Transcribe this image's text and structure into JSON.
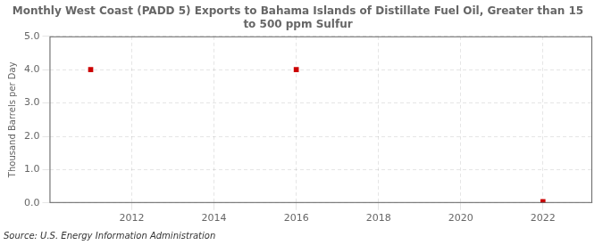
{
  "chart_data": {
    "type": "scatter",
    "title": "Monthly West Coast (PADD 5) Exports to Bahama Islands of Distillate Fuel Oil, Greater than 15\nto 500 ppm Sulfur",
    "ylabel": "Thousand Barrels per Day",
    "annotations": [
      "Source: U.S. Energy Information Administration"
    ],
    "x": [
      2011.0,
      2016.0,
      2022.0
    ],
    "values": [
      4.0,
      4.0,
      0.04
    ],
    "color": "#cc0000",
    "marker": "square",
    "xlim": [
      2010.0,
      2023.2
    ],
    "ylim": [
      0.0,
      5.0
    ],
    "xticks": [
      2012,
      2014,
      2016,
      2018,
      2020,
      2022
    ],
    "yticks": [
      {
        "value": 0.0,
        "label": "0.0"
      },
      {
        "value": 1.0,
        "label": "1.0"
      },
      {
        "value": 2.0,
        "label": "2.0"
      },
      {
        "value": 3.0,
        "label": "3.0"
      },
      {
        "value": 4.0,
        "label": "4.0"
      },
      {
        "value": 5.0,
        "label": "5.0"
      }
    ],
    "grid": true
  }
}
